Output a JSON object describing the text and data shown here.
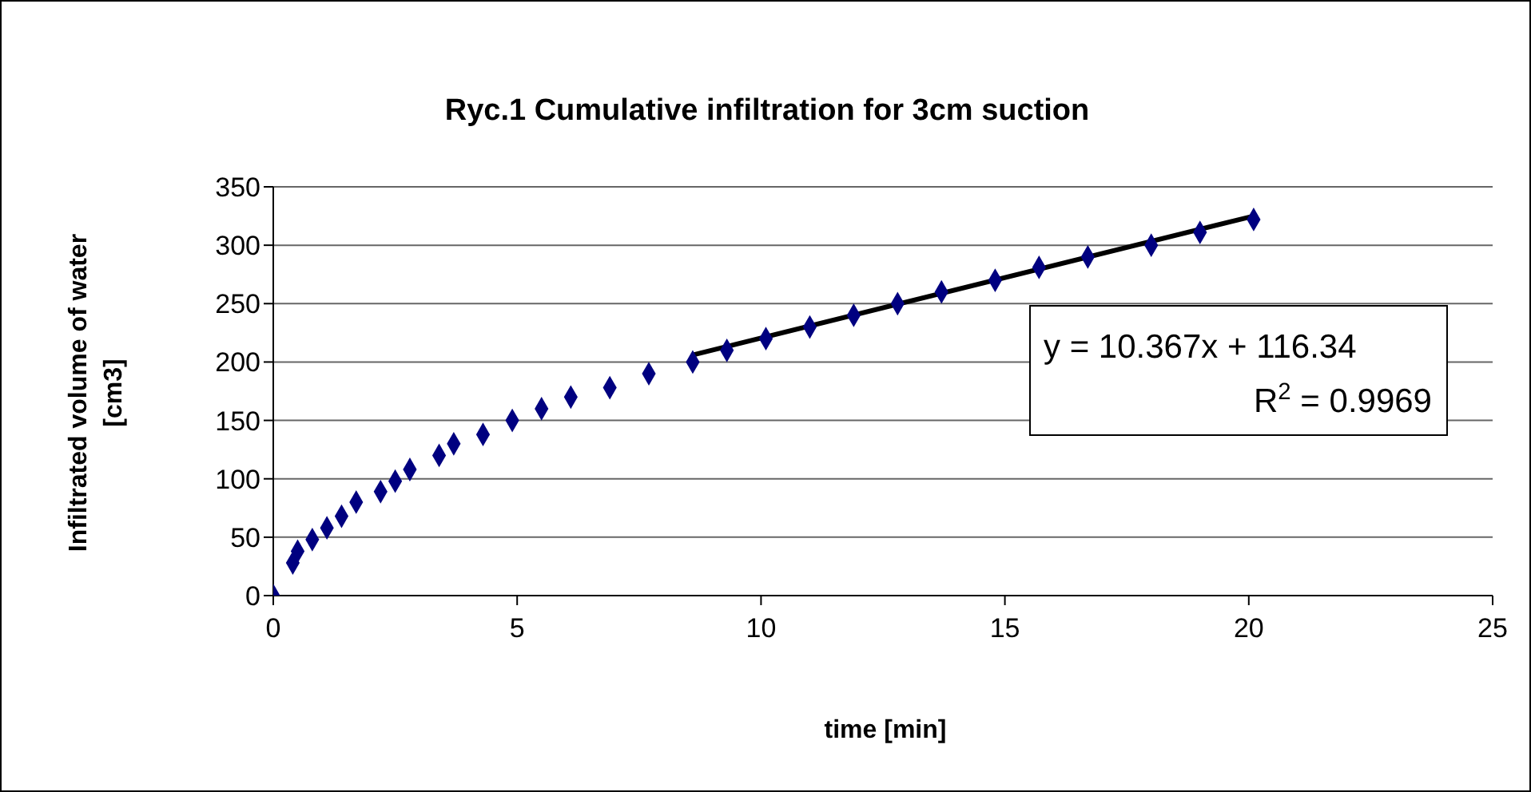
{
  "chart_data": {
    "type": "scatter",
    "title": "Ryc.1 Cumulative infiltration for 3cm suction",
    "xlabel": "time [min]",
    "ylabel": "Infiltrated volume of water [cm3]",
    "annotations": [
      "y = 10.367x + 116.34\nR$^{2}$ = 0.9969"
    ],
    "series": [
      {
        "color": "#000080",
        "marker": "diamond",
        "x": [
          0,
          0.4,
          0.5,
          0.8,
          1.1,
          1.4,
          1.7,
          2.2,
          2.5,
          2.8,
          3.4,
          3.7,
          4.3,
          4.9,
          5.5,
          6.1,
          6.9,
          7.7,
          8.6,
          9.3,
          10.1,
          11,
          11.9,
          12.8,
          13.7,
          14.8,
          15.7,
          16.7,
          18,
          19,
          20.1
        ],
        "values": [
          0,
          28,
          38,
          48,
          58,
          68,
          80,
          89,
          98,
          108,
          120,
          130,
          138,
          150,
          160,
          170,
          178,
          190,
          200,
          210,
          220,
          230,
          240,
          250,
          260,
          270,
          281,
          290,
          300,
          311,
          322
        ]
      },
      {
        "type": "line",
        "color": "#000000",
        "marker": "none",
        "line_style": "solid",
        "x": [
          8.6,
          20.1
        ],
        "values": [
          206,
          325
        ]
      }
    ],
    "xlim": [
      0,
      25
    ],
    "xticks": [
      0,
      5,
      10,
      15,
      20,
      25
    ],
    "ylim": [
      0,
      350
    ],
    "yticks": [
      0,
      50,
      100,
      150,
      200,
      250,
      300,
      350
    ],
    "grid": "y",
    "legend": false
  }
}
